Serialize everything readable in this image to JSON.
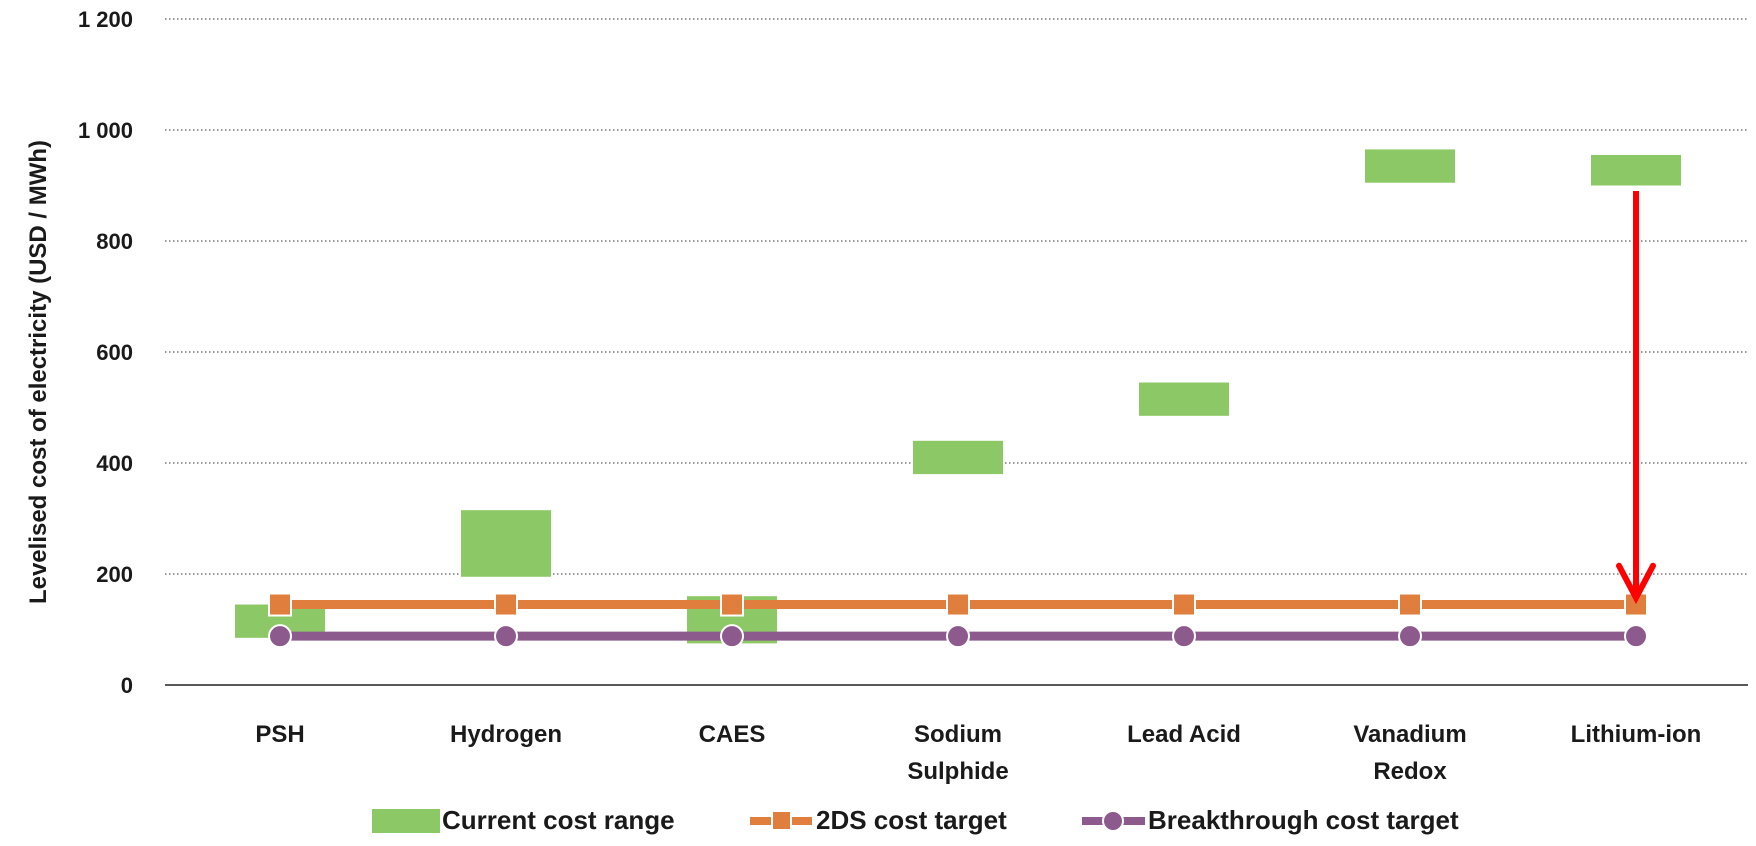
{
  "chart_data": {
    "type": "bar",
    "categories": [
      [
        "PSH"
      ],
      [
        "Hydrogen"
      ],
      [
        "CAES"
      ],
      [
        "Sodium",
        "Sulphide"
      ],
      [
        "Lead Acid"
      ],
      [
        "Vanadium",
        "Redox"
      ],
      [
        "Lithium-ion"
      ]
    ],
    "ylabel": "Levelised cost of electricity (USD / MWh)",
    "ylim": [
      0,
      1200
    ],
    "yticks": [
      0,
      200,
      400,
      600,
      800,
      1000,
      1200
    ],
    "ytick_labels": [
      "0",
      "200",
      "400",
      "600",
      "800",
      "1 000",
      "1 200"
    ],
    "grid": true,
    "legend_position": "bottom",
    "series": [
      {
        "name": "Current cost range",
        "kind": "range-bar",
        "color": "#8cc866",
        "ranges": [
          [
            85,
            145
          ],
          [
            195,
            315
          ],
          [
            75,
            160
          ],
          [
            380,
            440
          ],
          [
            485,
            545
          ],
          [
            905,
            965
          ],
          [
            900,
            955
          ]
        ]
      },
      {
        "name": "2DS cost target",
        "kind": "line",
        "marker": "square",
        "color": "#e07f3d",
        "values": [
          145,
          145,
          145,
          145,
          145,
          145,
          145
        ]
      },
      {
        "name": "Breakthrough cost target",
        "kind": "line",
        "marker": "circle",
        "color": "#8c5a8c",
        "values": [
          88,
          88,
          88,
          88,
          88,
          88,
          88
        ]
      }
    ],
    "annotations": [
      {
        "kind": "arrow",
        "category_index": 6,
        "from_value": 890,
        "to_value": 150,
        "color": "#ff0000"
      }
    ]
  }
}
